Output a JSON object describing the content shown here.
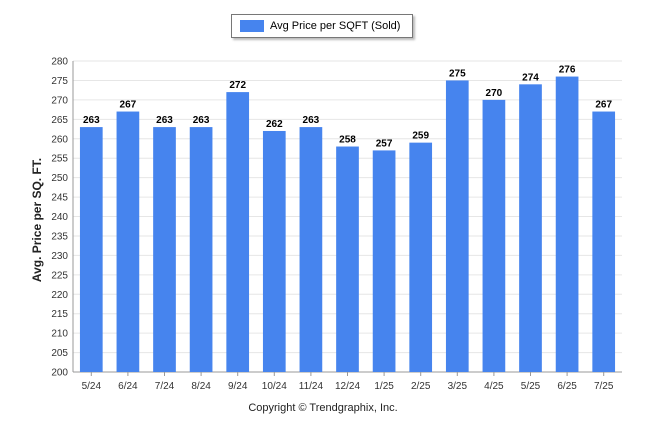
{
  "chart_data": {
    "type": "bar",
    "categories": [
      "5/24",
      "6/24",
      "7/24",
      "8/24",
      "9/24",
      "10/24",
      "11/24",
      "12/24",
      "1/25",
      "2/25",
      "3/25",
      "4/25",
      "5/25",
      "6/25",
      "7/25"
    ],
    "series": [
      {
        "name": "Avg Price per SQFT (Sold)",
        "values": [
          263,
          267,
          263,
          263,
          272,
          262,
          263,
          258,
          257,
          259,
          275,
          270,
          274,
          276,
          267
        ]
      }
    ],
    "ylabel": "Avg. Price per SQ. FT.",
    "xlabel": "",
    "ylim": [
      200,
      280
    ],
    "yticks": [
      200,
      205,
      210,
      215,
      220,
      225,
      230,
      235,
      240,
      245,
      250,
      255,
      260,
      265,
      270,
      275,
      280
    ],
    "grid": true,
    "legend_position": "top-center",
    "bar_color": "#4684ee"
  },
  "footer": "Copyright © Trendgraphix, Inc."
}
